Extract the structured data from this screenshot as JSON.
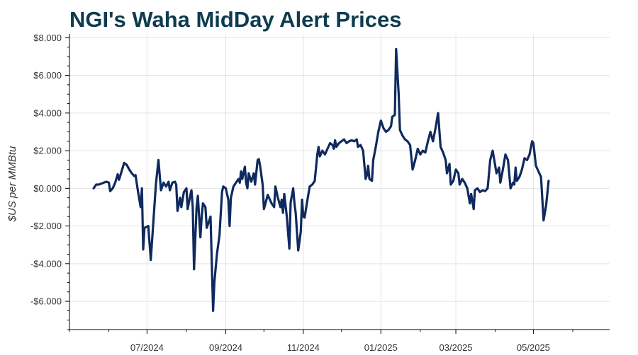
{
  "colors": {
    "line": "#0f2a5e",
    "title": "#0d3b4f"
  },
  "chart_data": {
    "type": "line",
    "title": "NGI's Waha MidDay Alert Prices",
    "xlabel": "",
    "ylabel": "$US per MMBtu",
    "ylim": [
      -7.5,
      8.2
    ],
    "xlim": [
      "2024-05-01",
      "2025-06-30"
    ],
    "grid": true,
    "legend": "none",
    "y_ticks": [
      {
        "value": 8,
        "label": "$8.000"
      },
      {
        "value": 6,
        "label": "$6.000"
      },
      {
        "value": 4,
        "label": "$4.000"
      },
      {
        "value": 2,
        "label": "$2.000"
      },
      {
        "value": 0,
        "label": "$0.000"
      },
      {
        "value": -2,
        "label": "-$2.000"
      },
      {
        "value": -4,
        "label": "-$4.000"
      },
      {
        "value": -6,
        "label": "-$6.000"
      }
    ],
    "x_ticks": [
      {
        "date": "2024-07-01",
        "label": "07/2024"
      },
      {
        "date": "2024-09-01",
        "label": "09/2024"
      },
      {
        "date": "2024-11-01",
        "label": "11/2024"
      },
      {
        "date": "2025-01-01",
        "label": "01/2025"
      },
      {
        "date": "2025-03-01",
        "label": "03/2025"
      },
      {
        "date": "2025-05-01",
        "label": "05/2025"
      }
    ],
    "series": [
      {
        "name": "Waha MidDay Alert",
        "points": [
          [
            "2024-05-20",
            0.0
          ],
          [
            "2024-05-22",
            0.2
          ],
          [
            "2024-05-24",
            0.2
          ],
          [
            "2024-05-26",
            0.25
          ],
          [
            "2024-05-28",
            0.3
          ],
          [
            "2024-05-30",
            0.35
          ],
          [
            "2024-06-01",
            0.3
          ],
          [
            "2024-06-02",
            -0.15
          ],
          [
            "2024-06-04",
            0.0
          ],
          [
            "2024-06-06",
            0.3
          ],
          [
            "2024-06-08",
            0.75
          ],
          [
            "2024-06-09",
            0.45
          ],
          [
            "2024-06-11",
            0.9
          ],
          [
            "2024-06-13",
            1.35
          ],
          [
            "2024-06-15",
            1.25
          ],
          [
            "2024-06-17",
            1.0
          ],
          [
            "2024-06-19",
            0.8
          ],
          [
            "2024-06-21",
            0.65
          ],
          [
            "2024-06-22",
            0.7
          ],
          [
            "2024-06-24",
            -0.2
          ],
          [
            "2024-06-26",
            -1.0
          ],
          [
            "2024-06-27",
            0.0
          ],
          [
            "2024-06-28",
            -3.25
          ],
          [
            "2024-06-29",
            -2.1
          ],
          [
            "2024-07-02",
            -2.0
          ],
          [
            "2024-07-04",
            -3.8
          ],
          [
            "2024-07-06",
            -1.8
          ],
          [
            "2024-07-08",
            0.2
          ],
          [
            "2024-07-10",
            1.5
          ],
          [
            "2024-07-12",
            -0.1
          ],
          [
            "2024-07-14",
            0.3
          ],
          [
            "2024-07-16",
            0.1
          ],
          [
            "2024-07-18",
            0.35
          ],
          [
            "2024-07-19",
            -0.1
          ],
          [
            "2024-07-21",
            0.3
          ],
          [
            "2024-07-23",
            0.35
          ],
          [
            "2024-07-24",
            0.2
          ],
          [
            "2024-07-25",
            -1.2
          ],
          [
            "2024-07-27",
            -0.5
          ],
          [
            "2024-07-28",
            -1.0
          ],
          [
            "2024-07-30",
            -0.2
          ],
          [
            "2024-08-01",
            0.0
          ],
          [
            "2024-08-02",
            -1.1
          ],
          [
            "2024-08-04",
            -0.4
          ],
          [
            "2024-08-05",
            -0.1
          ],
          [
            "2024-08-06",
            -1.0
          ],
          [
            "2024-08-07",
            -4.3
          ],
          [
            "2024-08-09",
            -1.0
          ],
          [
            "2024-08-10",
            -0.4
          ],
          [
            "2024-08-12",
            -2.6
          ],
          [
            "2024-08-13",
            -1.5
          ],
          [
            "2024-08-14",
            -0.8
          ],
          [
            "2024-08-16",
            -1.0
          ],
          [
            "2024-08-17",
            -2.1
          ],
          [
            "2024-08-19",
            -1.7
          ],
          [
            "2024-08-20",
            -1.5
          ],
          [
            "2024-08-22",
            -6.5
          ],
          [
            "2024-08-23",
            -5.0
          ],
          [
            "2024-08-25",
            -3.5
          ],
          [
            "2024-08-27",
            -2.5
          ],
          [
            "2024-08-29",
            -0.2
          ],
          [
            "2024-08-30",
            0.1
          ],
          [
            "2024-09-01",
            0.0
          ],
          [
            "2024-09-03",
            -0.6
          ],
          [
            "2024-09-04",
            -2.0
          ],
          [
            "2024-09-05",
            -0.5
          ],
          [
            "2024-09-07",
            0.1
          ],
          [
            "2024-09-09",
            0.3
          ],
          [
            "2024-09-11",
            0.5
          ],
          [
            "2024-09-12",
            0.3
          ],
          [
            "2024-09-13",
            0.9
          ],
          [
            "2024-09-14",
            0.5
          ],
          [
            "2024-09-16",
            1.15
          ],
          [
            "2024-09-17",
            0.3
          ],
          [
            "2024-09-18",
            0.0
          ],
          [
            "2024-09-19",
            0.8
          ],
          [
            "2024-09-21",
            0.35
          ],
          [
            "2024-09-23",
            0.8
          ],
          [
            "2024-09-24",
            0.2
          ],
          [
            "2024-09-26",
            1.5
          ],
          [
            "2024-09-27",
            1.55
          ],
          [
            "2024-09-28",
            1.2
          ],
          [
            "2024-09-30",
            0.2
          ],
          [
            "2024-10-01",
            -1.1
          ],
          [
            "2024-10-02",
            -0.85
          ],
          [
            "2024-10-04",
            -0.35
          ],
          [
            "2024-10-05",
            -0.5
          ],
          [
            "2024-10-07",
            -0.8
          ],
          [
            "2024-10-09",
            -1.0
          ],
          [
            "2024-10-10",
            0.1
          ],
          [
            "2024-10-12",
            -0.5
          ],
          [
            "2024-10-14",
            -1.0
          ],
          [
            "2024-10-15",
            -0.6
          ],
          [
            "2024-10-16",
            -1.3
          ],
          [
            "2024-10-17",
            -0.3
          ],
          [
            "2024-10-19",
            -1.5
          ],
          [
            "2024-10-21",
            -3.2
          ],
          [
            "2024-10-22",
            -0.75
          ],
          [
            "2024-10-24",
            0.0
          ],
          [
            "2024-10-25",
            -0.8
          ],
          [
            "2024-10-26",
            -1.3
          ],
          [
            "2024-10-28",
            -3.3
          ],
          [
            "2024-10-30",
            -2.3
          ],
          [
            "2024-10-31",
            -0.6
          ],
          [
            "2024-11-01",
            -1.5
          ],
          [
            "2024-11-02",
            -1.55
          ],
          [
            "2024-11-04",
            -0.7
          ],
          [
            "2024-11-06",
            0.1
          ],
          [
            "2024-11-08",
            0.2
          ],
          [
            "2024-11-10",
            0.4
          ],
          [
            "2024-11-12",
            1.8
          ],
          [
            "2024-11-13",
            2.2
          ],
          [
            "2024-11-14",
            1.7
          ],
          [
            "2024-11-16",
            2.0
          ],
          [
            "2024-11-18",
            1.8
          ],
          [
            "2024-11-20",
            2.1
          ],
          [
            "2024-11-22",
            2.4
          ],
          [
            "2024-11-24",
            2.3
          ],
          [
            "2024-11-25",
            2.1
          ],
          [
            "2024-11-26",
            2.55
          ],
          [
            "2024-11-27",
            2.2
          ],
          [
            "2024-11-29",
            2.4
          ],
          [
            "2024-12-01",
            2.5
          ],
          [
            "2024-12-03",
            2.6
          ],
          [
            "2024-12-05",
            2.4
          ],
          [
            "2024-12-07",
            2.5
          ],
          [
            "2024-12-09",
            2.55
          ],
          [
            "2024-12-11",
            2.5
          ],
          [
            "2024-12-13",
            2.6
          ],
          [
            "2024-12-14",
            2.2
          ],
          [
            "2024-12-16",
            2.3
          ],
          [
            "2024-12-18",
            2.0
          ],
          [
            "2024-12-20",
            0.5
          ],
          [
            "2024-12-21",
            0.7
          ],
          [
            "2024-12-22",
            1.2
          ],
          [
            "2024-12-23",
            0.5
          ],
          [
            "2024-12-25",
            0.4
          ],
          [
            "2024-12-26",
            1.5
          ],
          [
            "2024-12-28",
            2.2
          ],
          [
            "2024-12-30",
            3.0
          ],
          [
            "2025-01-01",
            3.6
          ],
          [
            "2025-01-03",
            3.2
          ],
          [
            "2025-01-05",
            3.0
          ],
          [
            "2025-01-07",
            3.1
          ],
          [
            "2025-01-09",
            3.3
          ],
          [
            "2025-01-10",
            3.8
          ],
          [
            "2025-01-12",
            3.9
          ],
          [
            "2025-01-13",
            7.4
          ],
          [
            "2025-01-15",
            5.0
          ],
          [
            "2025-01-16",
            3.1
          ],
          [
            "2025-01-18",
            2.8
          ],
          [
            "2025-01-20",
            2.6
          ],
          [
            "2025-01-22",
            2.5
          ],
          [
            "2025-01-24",
            2.3
          ],
          [
            "2025-01-26",
            1.0
          ],
          [
            "2025-01-28",
            1.5
          ],
          [
            "2025-01-30",
            2.1
          ],
          [
            "2025-02-01",
            1.8
          ],
          [
            "2025-02-03",
            2.0
          ],
          [
            "2025-02-05",
            1.9
          ],
          [
            "2025-02-07",
            2.5
          ],
          [
            "2025-02-09",
            3.0
          ],
          [
            "2025-02-11",
            2.5
          ],
          [
            "2025-02-13",
            3.2
          ],
          [
            "2025-02-15",
            4.0
          ],
          [
            "2025-02-17",
            2.2
          ],
          [
            "2025-02-19",
            1.9
          ],
          [
            "2025-02-21",
            1.5
          ],
          [
            "2025-02-22",
            0.8
          ],
          [
            "2025-02-24",
            1.3
          ],
          [
            "2025-02-25",
            0.2
          ],
          [
            "2025-02-27",
            0.4
          ],
          [
            "2025-03-01",
            1.0
          ],
          [
            "2025-03-03",
            0.8
          ],
          [
            "2025-03-04",
            0.2
          ],
          [
            "2025-03-06",
            0.5
          ],
          [
            "2025-03-08",
            0.3
          ],
          [
            "2025-03-10",
            0.0
          ],
          [
            "2025-03-12",
            -0.8
          ],
          [
            "2025-03-13",
            -0.3
          ],
          [
            "2025-03-15",
            -1.1
          ],
          [
            "2025-03-16",
            -0.1
          ],
          [
            "2025-03-18",
            0.0
          ],
          [
            "2025-03-20",
            -0.2
          ],
          [
            "2025-03-22",
            -0.1
          ],
          [
            "2025-03-24",
            -0.15
          ],
          [
            "2025-03-26",
            0.0
          ],
          [
            "2025-03-28",
            1.5
          ],
          [
            "2025-03-30",
            2.0
          ],
          [
            "2025-04-01",
            1.2
          ],
          [
            "2025-04-02",
            0.8
          ],
          [
            "2025-04-04",
            1.1
          ],
          [
            "2025-04-05",
            0.3
          ],
          [
            "2025-04-07",
            1.0
          ],
          [
            "2025-04-09",
            1.8
          ],
          [
            "2025-04-11",
            1.5
          ],
          [
            "2025-04-13",
            0.0
          ],
          [
            "2025-04-15",
            0.3
          ],
          [
            "2025-04-16",
            0.2
          ],
          [
            "2025-04-17",
            1.1
          ],
          [
            "2025-04-18",
            0.4
          ],
          [
            "2025-04-20",
            0.6
          ],
          [
            "2025-04-22",
            1.0
          ],
          [
            "2025-04-24",
            1.6
          ],
          [
            "2025-04-26",
            1.5
          ],
          [
            "2025-04-28",
            1.8
          ],
          [
            "2025-04-30",
            2.5
          ],
          [
            "2025-05-01",
            2.4
          ],
          [
            "2025-05-03",
            1.2
          ],
          [
            "2025-05-05",
            0.9
          ],
          [
            "2025-05-07",
            0.6
          ],
          [
            "2025-05-09",
            -1.7
          ],
          [
            "2025-05-11",
            -0.9
          ],
          [
            "2025-05-13",
            0.4
          ]
        ]
      }
    ]
  }
}
